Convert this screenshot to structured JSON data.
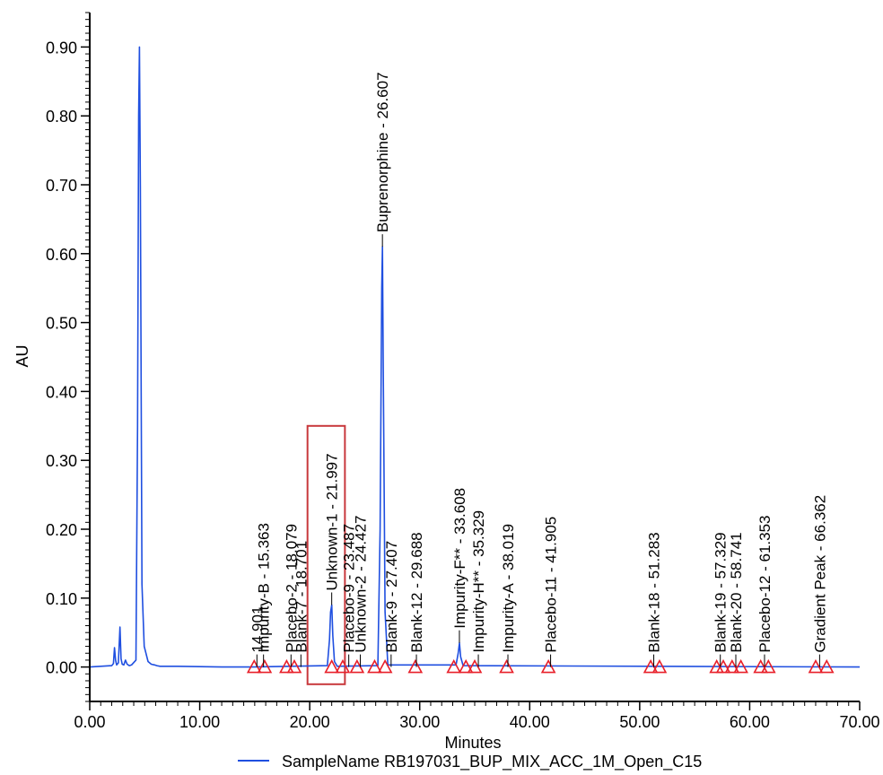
{
  "chart_data": {
    "type": "line",
    "xlabel": "Minutes",
    "ylabel": "AU",
    "xlim": [
      0,
      70
    ],
    "ylim": [
      -0.05,
      0.95
    ],
    "x_ticks": [
      "0.00",
      "10.00",
      "20.00",
      "30.00",
      "40.00",
      "50.00",
      "60.00",
      "70.00"
    ],
    "y_ticks": [
      "0.00",
      "0.10",
      "0.20",
      "0.30",
      "0.40",
      "0.50",
      "0.60",
      "0.70",
      "0.80",
      "0.90"
    ],
    "x_tick_values": [
      0,
      10,
      20,
      30,
      40,
      50,
      60,
      70
    ],
    "y_tick_values": [
      0,
      0.1,
      0.2,
      0.3,
      0.4,
      0.5,
      0.6,
      0.7,
      0.8,
      0.9
    ],
    "series": [
      {
        "name": "SampleName RB197031_BUP_MIX_ACC_1M_Open_C15",
        "color": "#1f4fe0",
        "x": [
          0,
          2.0,
          2.15,
          2.25,
          2.35,
          2.45,
          2.6,
          2.75,
          2.85,
          2.95,
          3.1,
          3.25,
          3.4,
          3.6,
          3.8,
          4.2,
          4.35,
          4.45,
          4.52,
          4.6,
          4.75,
          4.95,
          5.3,
          5.6,
          5.9,
          6.1,
          6.4,
          8,
          12,
          14.8,
          21.6,
          21.8,
          21.9,
          22.0,
          22.1,
          22.25,
          22.5,
          26.2,
          26.4,
          26.55,
          26.61,
          26.68,
          26.85,
          27.1,
          33.3,
          33.5,
          33.61,
          33.72,
          33.95,
          70
        ],
        "y": [
          0,
          0.002,
          0.005,
          0.028,
          0.01,
          0.003,
          0.006,
          0.058,
          0.012,
          0.004,
          0.003,
          0.01,
          0.004,
          0.002,
          0.003,
          0.01,
          0.35,
          0.8,
          0.9,
          0.7,
          0.12,
          0.03,
          0.008,
          0.004,
          0.003,
          0.002,
          0.001,
          0.001,
          0.0,
          0.0,
          0.002,
          0.04,
          0.08,
          0.09,
          0.045,
          0.008,
          0.001,
          0.002,
          0.2,
          0.55,
          0.61,
          0.45,
          0.08,
          0.003,
          0.003,
          0.02,
          0.035,
          0.015,
          0.002,
          0.0
        ]
      }
    ],
    "peaks": [
      {
        "label": "14.901",
        "rt": 14.901,
        "x": 15.2,
        "y": 0.0
      },
      {
        "label": "Impurity-B - 15.363",
        "rt": 15.363,
        "x": 15.8,
        "y": 0.0
      },
      {
        "label": "Placebo-2 - 18.079",
        "rt": 18.079,
        "x": 18.3,
        "y": 0.0
      },
      {
        "label": "Blank-7 - 18.701",
        "rt": 18.701,
        "x": 19.2,
        "y": 0.0
      },
      {
        "label": "Unknown-1 - 21.997",
        "rt": 21.997,
        "x": 22.0,
        "y": 0.09
      },
      {
        "label": "Placebo-9 - 23.487",
        "rt": 23.487,
        "x": 23.55,
        "y": 0.0
      },
      {
        "label": "Unknown-2 - 24.427",
        "rt": 24.427,
        "x": 24.6,
        "y": 0.0
      },
      {
        "label": "Buprenorphine - 26.607",
        "rt": 26.607,
        "x": 26.61,
        "y": 0.61
      },
      {
        "label": "Blank-9 - 27.407",
        "rt": 27.407,
        "x": 27.4,
        "y": 0.0
      },
      {
        "label": "Blank-12 - 29.688",
        "rt": 29.688,
        "x": 29.7,
        "y": 0.0
      },
      {
        "label": "Impurity-F** - 33.608",
        "rt": 33.608,
        "x": 33.61,
        "y": 0.035
      },
      {
        "label": "Impurity-H** - 35.329",
        "rt": 35.329,
        "x": 35.33,
        "y": 0.0
      },
      {
        "label": "Impurity-A - 38.019",
        "rt": 38.019,
        "x": 38.02,
        "y": 0.0
      },
      {
        "label": "Placebo-11 - 41.905",
        "rt": 41.905,
        "x": 41.9,
        "y": 0.0
      },
      {
        "label": "Blank-18 - 51.283",
        "rt": 51.283,
        "x": 51.28,
        "y": 0.0
      },
      {
        "label": "Blank-19 - 57.329",
        "rt": 57.329,
        "x": 57.33,
        "y": 0.0
      },
      {
        "label": "Blank-20 - 58.741",
        "rt": 58.741,
        "x": 58.74,
        "y": 0.0
      },
      {
        "label": "Placebo-12 - 61.353",
        "rt": 61.353,
        "x": 61.35,
        "y": 0.0
      },
      {
        "label": "Gradient Peak - 66.362",
        "rt": 66.362,
        "x": 66.36,
        "y": 0.0
      }
    ],
    "integration_markers": [
      14.95,
      15.9,
      17.9,
      18.6,
      22.0,
      23.0,
      24.3,
      25.9,
      26.85,
      29.6,
      33.1,
      34.2,
      35.0,
      37.9,
      41.7,
      51.0,
      51.8,
      57.0,
      57.6,
      58.4,
      59.2,
      61.0,
      61.7,
      66.0,
      67.0
    ],
    "highlight_box": {
      "x_range": [
        19.8,
        23.2
      ],
      "y_range": [
        -0.025,
        0.35
      ],
      "color": "#c8383c"
    },
    "marker_color": "#e8202a",
    "axis_color": "#000000",
    "legend": {
      "position": "bottom-center"
    },
    "grid": false
  }
}
